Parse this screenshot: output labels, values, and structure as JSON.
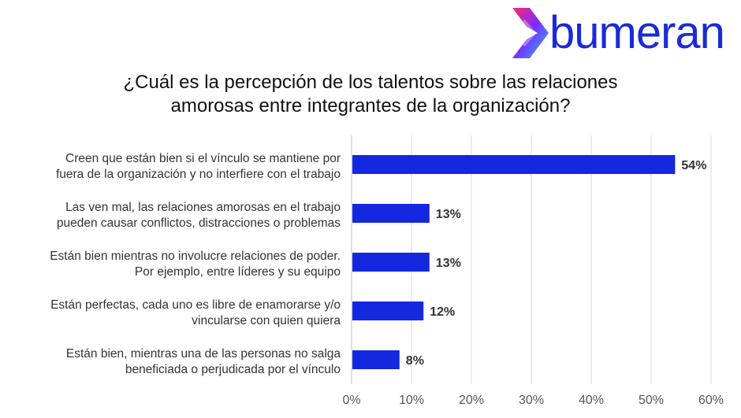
{
  "brand": {
    "name": "bumeran",
    "color": "#1a2bd6",
    "logo_icon": "boomerang-chevron-icon",
    "logo_gradient": [
      "#ff2a6d",
      "#7a2cff",
      "#23c3ff"
    ]
  },
  "chart_data": {
    "type": "bar",
    "orientation": "horizontal",
    "title_lines": [
      "¿Cuál es la percepción de los talentos sobre las relaciones",
      "amorosas entre integrantes de la organización?"
    ],
    "categories": [
      [
        "Creen que están bien si el vínculo se mantiene por",
        "fuera de la organización y no interfiere con el trabajo"
      ],
      [
        "Las ven mal, las relaciones amorosas en el trabajo",
        "pueden causar conflictos, distracciones o problemas"
      ],
      [
        "Están bien mientras no involucre relaciones de poder.",
        "Por ejemplo, entre líderes y su equipo"
      ],
      [
        "Están perfectas, cada uno es libre de enamorarse y/o",
        "vincularse con quien quiera"
      ],
      [
        "Están bien, mientras una de las personas no salga",
        "beneficiada o perjudicada por el vínculo"
      ]
    ],
    "values": [
      54,
      13,
      13,
      12,
      8
    ],
    "data_labels": [
      "54%",
      "13%",
      "13%",
      "12%",
      "8%"
    ],
    "xlim": [
      0,
      60
    ],
    "xticks": [
      0,
      10,
      20,
      30,
      40,
      50,
      60
    ],
    "xtick_labels": [
      "0%",
      "10%",
      "20%",
      "30%",
      "40%",
      "50%",
      "60%"
    ],
    "bar_color": "#1428e0",
    "grid_color": "#d9d9d9",
    "grid": true,
    "legend": false
  }
}
